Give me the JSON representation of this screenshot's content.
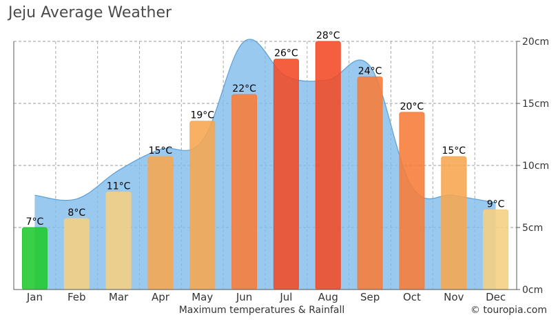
{
  "chart_data": {
    "type": "bar",
    "title": "Jeju Average Weather",
    "subtitle": "Maximum temperatures & Rainfall",
    "credit": "© touropia.com",
    "categories": [
      "Jan",
      "Feb",
      "Mar",
      "Apr",
      "May",
      "Jun",
      "Jul",
      "Aug",
      "Sep",
      "Oct",
      "Nov",
      "Dec"
    ],
    "series": [
      {
        "type": "bar",
        "values": [
          7,
          8,
          11,
          15,
          19,
          22,
          26,
          28,
          24,
          20,
          15,
          9
        ],
        "labels": [
          "7°C",
          "8°C",
          "11°C",
          "15°C",
          "19°C",
          "22°C",
          "26°C",
          "28°C",
          "24°C",
          "20°C",
          "15°C",
          "9°C"
        ],
        "colors": [
          "#1fc82e",
          "#f5cf82",
          "#f5cf82",
          "#f7a64f",
          "#f7a64f",
          "#f77c38",
          "#f24a24",
          "#f24a24",
          "#f77c38",
          "#f77c38",
          "#f7a64f",
          "#f5cf82"
        ]
      },
      {
        "type": "area",
        "unit": "cm",
        "values": [
          7.6,
          7.3,
          9.6,
          11.3,
          12.0,
          20.0,
          17.2,
          16.9,
          18.0,
          8.3,
          7.6,
          7.0
        ],
        "color": "#7fbcea"
      }
    ],
    "y_right_ticks": [
      "0cm",
      "5cm",
      "10cm",
      "15cm",
      "20cm"
    ],
    "y_right_range": [
      0,
      20
    ],
    "y_left_range": [
      0,
      28
    ],
    "grid": true
  }
}
